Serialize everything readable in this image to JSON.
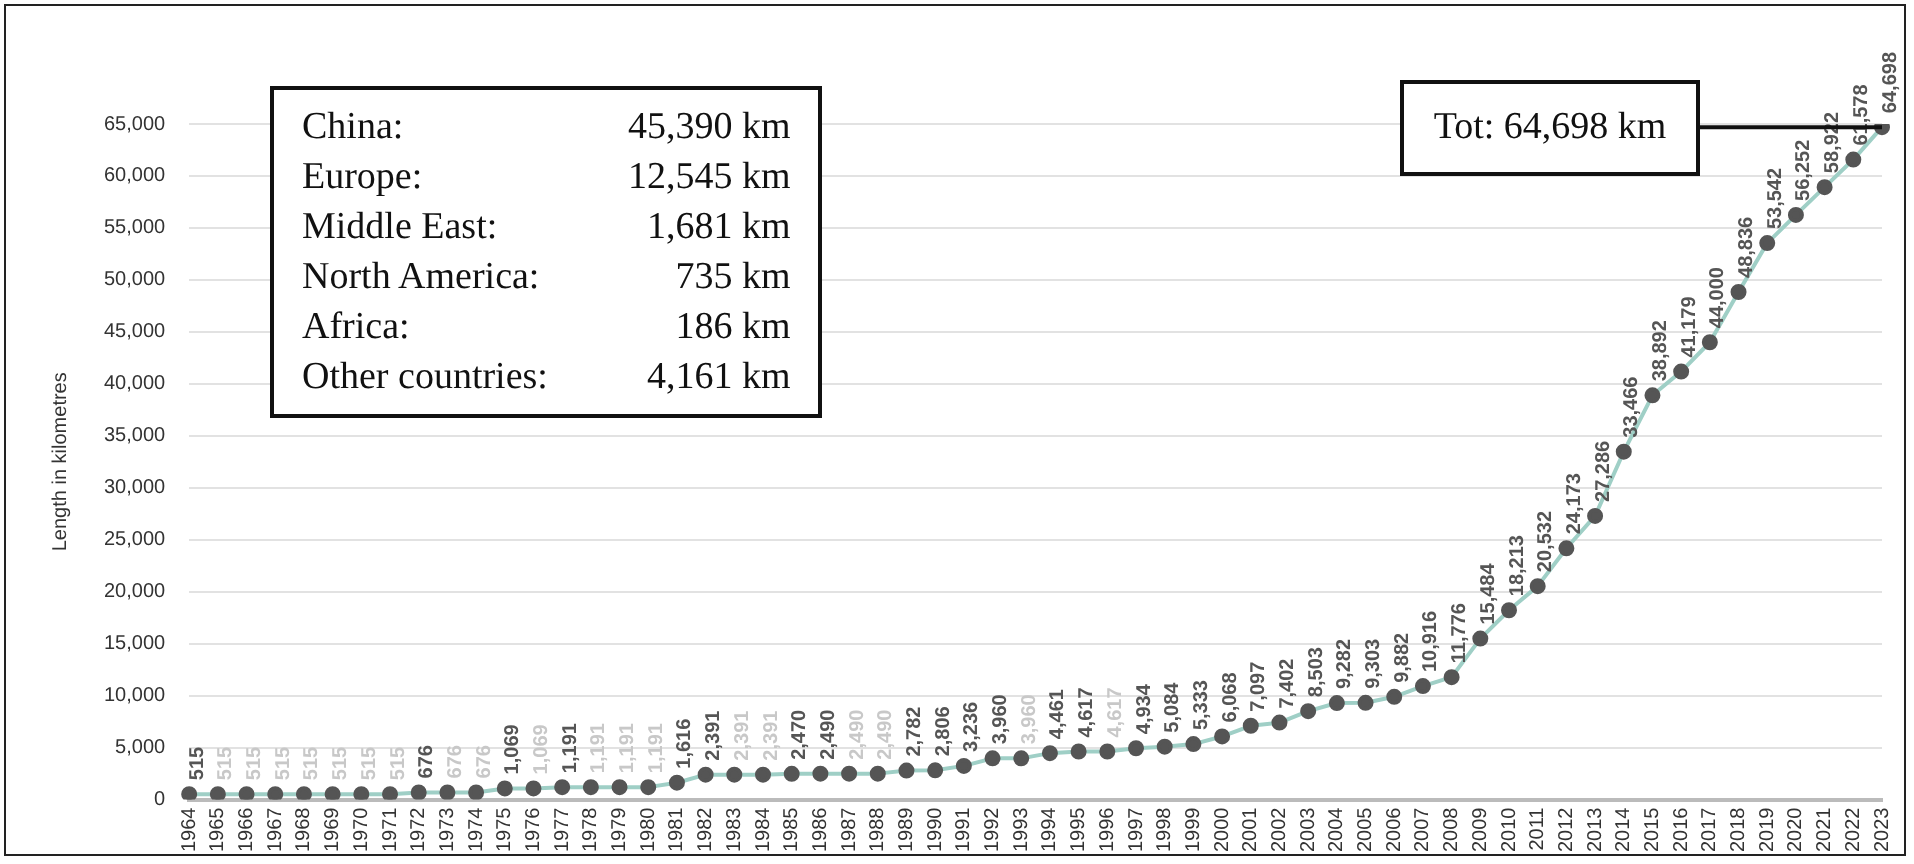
{
  "chart_data": {
    "type": "line",
    "ylabel": "Length in kilometres",
    "categories": [
      "1964",
      "1965",
      "1966",
      "1967",
      "1968",
      "1969",
      "1970",
      "1971",
      "1972",
      "1973",
      "1974",
      "1975",
      "1976",
      "1977",
      "1978",
      "1979",
      "1980",
      "1981",
      "1982",
      "1983",
      "1984",
      "1985",
      "1986",
      "1987",
      "1988",
      "1989",
      "1990",
      "1991",
      "1992",
      "1993",
      "1994",
      "1995",
      "1996",
      "1997",
      "1998",
      "1999",
      "2000",
      "2001",
      "2002",
      "2003",
      "2004",
      "2005",
      "2006",
      "2007",
      "2008",
      "2009",
      "2010",
      "2011",
      "2012",
      "2013",
      "2014",
      "2015",
      "2016",
      "2017",
      "2018",
      "2019",
      "2020",
      "2021",
      "2022",
      "2023"
    ],
    "series": [
      {
        "color": "#9fcfc6",
        "values": [
          515,
          515,
          515,
          515,
          515,
          515,
          515,
          515,
          676,
          676,
          676,
          1069,
          1069,
          1191,
          1191,
          1191,
          1191,
          1616,
          2391,
          2391,
          2391,
          2470,
          2490,
          2490,
          2490,
          2782,
          2806,
          3236,
          3960,
          3960,
          4461,
          4617,
          4617,
          4934,
          5084,
          5333,
          6068,
          7097,
          7402,
          8503,
          9282,
          9303,
          9882,
          10916,
          11776,
          15484,
          18213,
          20532,
          24173,
          27286,
          33466,
          38892,
          41179,
          44000,
          48836,
          53542,
          56252,
          58922,
          61578,
          64698
        ]
      }
    ],
    "value_labels": [
      "515",
      "515",
      "515",
      "515",
      "515",
      "515",
      "515",
      "515",
      "676",
      "676",
      "676",
      "1,069",
      "1,069",
      "1,191",
      "1,191",
      "1,191",
      "1,191",
      "1,616",
      "2,391",
      "2,391",
      "2,391",
      "2,470",
      "2,490",
      "2,490",
      "2,490",
      "2,782",
      "2,806",
      "3,236",
      "3,960",
      "3,960",
      "4,461",
      "4,617",
      "4,617",
      "4,934",
      "5,084",
      "5,333",
      "6,068",
      "7,097",
      "7,402",
      "8,503",
      "9,282",
      "9,303",
      "9,882",
      "10,916",
      "11,776",
      "15,484",
      "18,213",
      "20,532",
      "24,173",
      "27,286",
      "33,466",
      "38,892",
      "41,179",
      "44,000",
      "48,836",
      "53,542",
      "56,252",
      "58,922",
      "61,578",
      "64,698"
    ],
    "ylim": [
      0,
      65000
    ],
    "yticks": [
      0,
      {
        "value": 5000,
        "label": "5,000"
      },
      {
        "value": 10000,
        "label": "10,000"
      },
      {
        "value": 15000,
        "label": "15,000"
      },
      {
        "value": 20000,
        "label": "20,000"
      },
      {
        "value": 25000,
        "label": "25,000"
      },
      {
        "value": 30000,
        "label": "30,000"
      },
      {
        "value": 35000,
        "label": "35,000"
      },
      {
        "value": 40000,
        "label": "40,000"
      },
      {
        "value": 45000,
        "label": "45,000"
      },
      {
        "value": 50000,
        "label": "50,000"
      },
      {
        "value": 55000,
        "label": "55,000"
      },
      {
        "value": 60000,
        "label": "60,000"
      },
      {
        "value": 65000,
        "label": "65,000"
      }
    ],
    "grid": "y",
    "legend": false,
    "marker": "circle",
    "line_style": "solid",
    "annotations": [
      "China: 45,390 km",
      "Europe: 12,545 km",
      "Middle East: 1,681 km",
      "North America: 735 km",
      "Africa: 186 km",
      "Other countries: 4,161 km",
      {
        "text": "Tot: 64,698 km",
        "x": "2023",
        "y": 64698
      }
    ]
  }
}
